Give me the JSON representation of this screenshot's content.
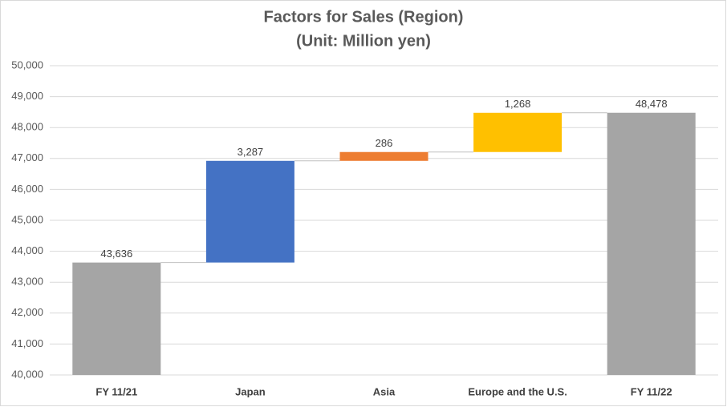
{
  "chart_data": {
    "type": "waterfall",
    "title": "Factors for Sales (Region)",
    "subtitle": "(Unit: Million yen)",
    "categories": [
      "FY 11/21",
      "Japan",
      "Asia",
      "Europe and the U.S.",
      "FY 11/22"
    ],
    "values": [
      43636,
      3287,
      286,
      1268,
      48478
    ],
    "value_labels": [
      "43,636",
      "3,287",
      "286",
      "1,268",
      "48,478"
    ],
    "total": [
      true,
      false,
      false,
      false,
      true
    ],
    "colors": [
      "#a5a5a5",
      "#4472c4",
      "#ed7d31",
      "#ffc000",
      "#a5a5a5"
    ],
    "ylim": [
      40000,
      50000
    ],
    "yticks": [
      {
        "value": 40000,
        "label": "40,000"
      },
      {
        "value": 41000,
        "label": "41,000"
      },
      {
        "value": 42000,
        "label": "42,000"
      },
      {
        "value": 43000,
        "label": "43,000"
      },
      {
        "value": 44000,
        "label": "44,000"
      },
      {
        "value": 45000,
        "label": "45,000"
      },
      {
        "value": 46000,
        "label": "46,000"
      },
      {
        "value": 47000,
        "label": "47,000"
      },
      {
        "value": 48000,
        "label": "48,000"
      },
      {
        "value": 49000,
        "label": "49,000"
      },
      {
        "value": 50000,
        "label": "50,000"
      }
    ],
    "grid": true
  }
}
